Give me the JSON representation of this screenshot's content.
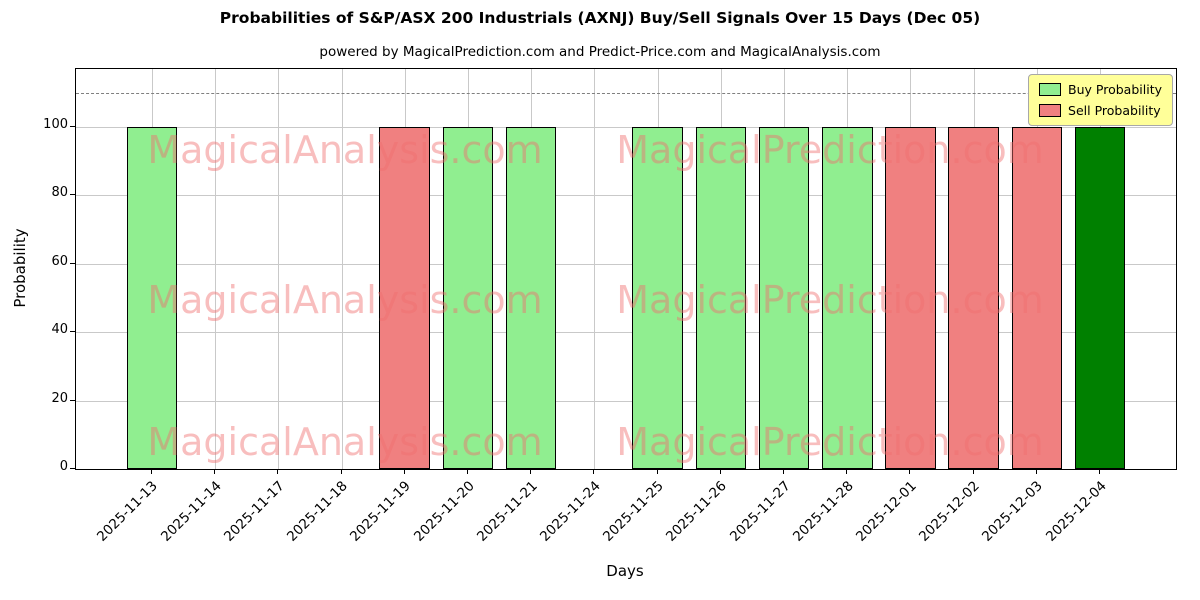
{
  "watermarks": {
    "texts": [
      "MagicalAnalysis.com",
      "MagicalPrediction.com"
    ],
    "color": "#f07070"
  },
  "chart_data": {
    "type": "bar",
    "title": "Probabilities of S&P/ASX 200 Industrials (AXNJ) Buy/Sell Signals Over 15 Days (Dec 05)",
    "subtitle": "powered by MagicalPrediction.com and Predict-Price.com and MagicalAnalysis.com",
    "xlabel": "Days",
    "ylabel": "Probability",
    "ylim": [
      0,
      117
    ],
    "yticks": [
      0,
      20,
      40,
      60,
      80,
      100
    ],
    "reference_line_y": 110,
    "grid": true,
    "legend_position": "upper right",
    "categories": [
      "2025-11-13",
      "2025-11-14",
      "2025-11-17",
      "2025-11-18",
      "2025-11-19",
      "2025-11-20",
      "2025-11-21",
      "2025-11-24",
      "2025-11-25",
      "2025-11-26",
      "2025-11-27",
      "2025-11-28",
      "2025-12-01",
      "2025-12-02",
      "2025-12-03",
      "2025-12-04"
    ],
    "bars": [
      {
        "date": "2025-11-13",
        "value": 100,
        "signal": "buy"
      },
      {
        "date": "2025-11-14",
        "value": 0,
        "signal": "none"
      },
      {
        "date": "2025-11-17",
        "value": 0,
        "signal": "none"
      },
      {
        "date": "2025-11-18",
        "value": 0,
        "signal": "none"
      },
      {
        "date": "2025-11-19",
        "value": 100,
        "signal": "sell"
      },
      {
        "date": "2025-11-20",
        "value": 100,
        "signal": "buy"
      },
      {
        "date": "2025-11-21",
        "value": 100,
        "signal": "buy"
      },
      {
        "date": "2025-11-24",
        "value": 0,
        "signal": "none"
      },
      {
        "date": "2025-11-25",
        "value": 100,
        "signal": "buy"
      },
      {
        "date": "2025-11-26",
        "value": 100,
        "signal": "buy"
      },
      {
        "date": "2025-11-27",
        "value": 100,
        "signal": "buy"
      },
      {
        "date": "2025-11-28",
        "value": 100,
        "signal": "buy"
      },
      {
        "date": "2025-12-01",
        "value": 100,
        "signal": "sell"
      },
      {
        "date": "2025-12-02",
        "value": 100,
        "signal": "sell"
      },
      {
        "date": "2025-12-03",
        "value": 100,
        "signal": "sell"
      },
      {
        "date": "2025-12-04",
        "value": 100,
        "signal": "current"
      }
    ],
    "colors": {
      "buy": "#90EE90",
      "sell": "#F08080",
      "current": "#008000"
    },
    "legend": [
      {
        "label": "Buy Probability",
        "color": "#90EE90"
      },
      {
        "label": "Sell Probability",
        "color": "#F08080"
      }
    ]
  }
}
